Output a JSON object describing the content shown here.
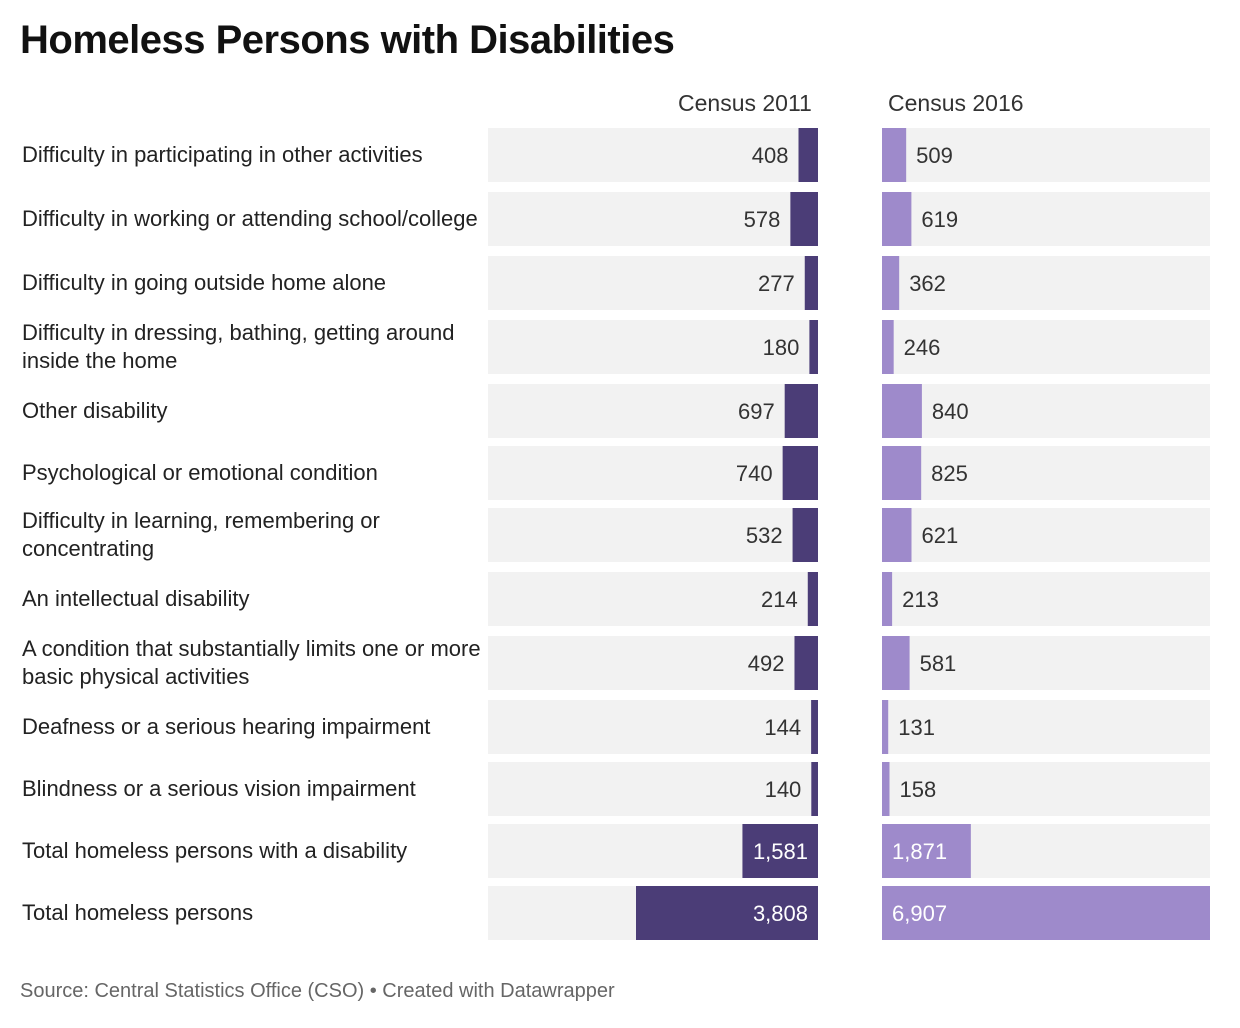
{
  "chart_data": {
    "type": "bar",
    "title": "Homeless Persons with Disabilities",
    "categories": [
      "Difficulty in participating in other activities",
      "Difficulty in working or attending school/college",
      "Difficulty in going outside home alone",
      "Difficulty in dressing, bathing, getting around inside the home",
      "Other disability",
      "Psychological or emotional condition",
      "Difficulty in learning, remembering or concentrating",
      "An intellectual disability",
      "A condition that substantially limits one or more basic physical activities",
      "Deafness or a serious hearing impairment",
      "Blindness or a serious vision impairment",
      "Total homeless persons with a disability",
      "Total homeless persons"
    ],
    "series": [
      {
        "name": "Census 2011",
        "values": [
          408,
          578,
          277,
          180,
          697,
          740,
          532,
          214,
          492,
          144,
          140,
          1581,
          3808
        ],
        "labels": [
          "408",
          "578",
          "277",
          "180",
          "697",
          "740",
          "532",
          "214",
          "492",
          "144",
          "140",
          "1,581",
          "3,808"
        ],
        "color": "#4b3d77"
      },
      {
        "name": "Census 2016",
        "values": [
          509,
          619,
          362,
          246,
          840,
          825,
          621,
          213,
          581,
          131,
          158,
          1871,
          6907
        ],
        "labels": [
          "509",
          "619",
          "362",
          "246",
          "840",
          "825",
          "621",
          "213",
          "581",
          "131",
          "158",
          "1,871",
          "6,907"
        ],
        "color": "#9e8acb"
      }
    ],
    "track_color": "#f2f2f2"
  },
  "footer": {
    "source": "Source: Central Statistics Office (CSO) • Created with Datawrapper"
  }
}
